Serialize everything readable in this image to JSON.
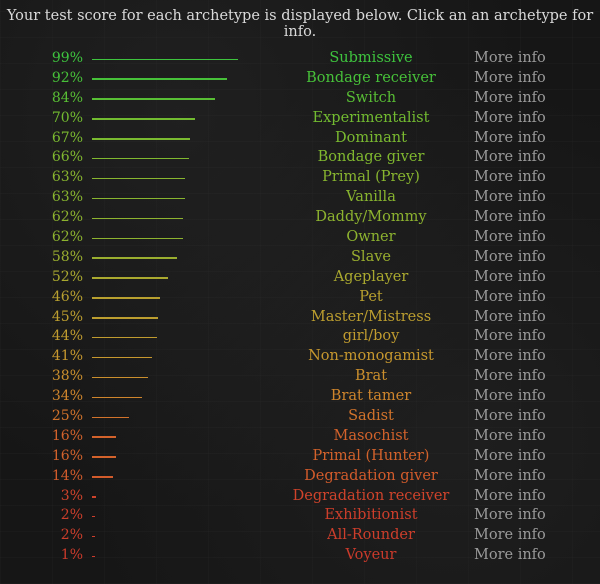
{
  "header_text": "Your test score for each archetype is displayed below. Click an an archetype for info.",
  "more_info_label": "More info",
  "archetypes": [
    {
      "percent": "99%",
      "score": 99,
      "name": "Submissive",
      "color": "#3ec43e"
    },
    {
      "percent": "92%",
      "score": 92,
      "name": "Bondage receiver",
      "color": "#47c139"
    },
    {
      "percent": "84%",
      "score": 84,
      "name": "Switch",
      "color": "#58be34"
    },
    {
      "percent": "70%",
      "score": 70,
      "name": "Experimentalist",
      "color": "#72bb30"
    },
    {
      "percent": "67%",
      "score": 67,
      "name": "Dominant",
      "color": "#7aba30"
    },
    {
      "percent": "66%",
      "score": 66,
      "name": "Bondage giver",
      "color": "#80b82f"
    },
    {
      "percent": "63%",
      "score": 63,
      "name": "Primal (Prey)",
      "color": "#88b52f"
    },
    {
      "percent": "63%",
      "score": 63,
      "name": "Vanilla",
      "color": "#88b52f"
    },
    {
      "percent": "62%",
      "score": 62,
      "name": "Daddy/Mommy",
      "color": "#8db32f"
    },
    {
      "percent": "62%",
      "score": 62,
      "name": "Owner",
      "color": "#8db32f"
    },
    {
      "percent": "58%",
      "score": 58,
      "name": "Slave",
      "color": "#9aae2f"
    },
    {
      "percent": "52%",
      "score": 52,
      "name": "Ageplayer",
      "color": "#aaa92f"
    },
    {
      "percent": "46%",
      "score": 46,
      "name": "Pet",
      "color": "#b8a02f"
    },
    {
      "percent": "45%",
      "score": 45,
      "name": "Master/Mistress",
      "color": "#bc9e2f"
    },
    {
      "percent": "44%",
      "score": 44,
      "name": "girl/boy",
      "color": "#c09b2f"
    },
    {
      "percent": "41%",
      "score": 41,
      "name": "Non-monogamist",
      "color": "#c6972e"
    },
    {
      "percent": "38%",
      "score": 38,
      "name": "Brat",
      "color": "#cb8f2d"
    },
    {
      "percent": "34%",
      "score": 34,
      "name": "Brat tamer",
      "color": "#cf852c"
    },
    {
      "percent": "25%",
      "score": 25,
      "name": "Sadist",
      "color": "#d2732b"
    },
    {
      "percent": "16%",
      "score": 16,
      "name": "Masochist",
      "color": "#d3622b"
    },
    {
      "percent": "16%",
      "score": 16,
      "name": "Primal (Hunter)",
      "color": "#d3622b"
    },
    {
      "percent": "14%",
      "score": 14,
      "name": "Degradation giver",
      "color": "#d25b2b"
    },
    {
      "percent": "3%",
      "score": 3,
      "name": "Degradation receiver",
      "color": "#cf432b"
    },
    {
      "percent": "2%",
      "score": 2,
      "name": "Exhibitionist",
      "color": "#cd3e2b"
    },
    {
      "percent": "2%",
      "score": 2,
      "name": "All-Rounder",
      "color": "#cd3e2b"
    },
    {
      "percent": "1%",
      "score": 1,
      "name": "Voyeur",
      "color": "#cb3a2b"
    }
  ]
}
